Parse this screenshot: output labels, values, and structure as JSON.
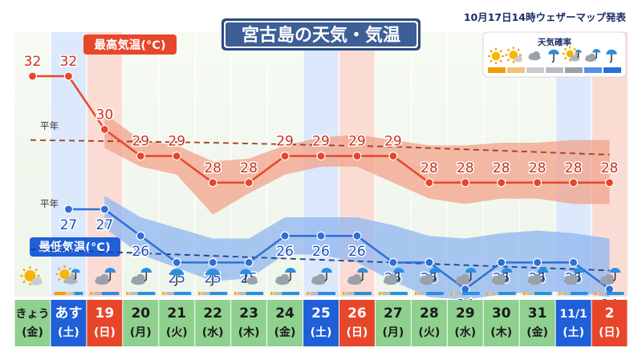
{
  "header": {
    "title": "宮古島の天気・気温",
    "issued": "10月17日14時ウェザーマップ発表"
  },
  "labels": {
    "max_temp": "最高気温(°C)",
    "min_temp": "最低気温(°C)",
    "normal_max": "平年",
    "normal_min": "平年",
    "legend_title": "天気確率"
  },
  "colors": {
    "max_line": "#e8462a",
    "max_band": "#f2a38b",
    "min_line": "#2f6fd6",
    "min_band": "#8fb6f0",
    "saturday_col": "#dce8fb",
    "sunday_col": "#fbdcd4",
    "weekday_label_bg": "#8fd08f",
    "saturday_label_bg": "#1f5fd8",
    "sunday_label_bg": "#e8462a"
  },
  "legend_icons": [
    "sun-icon",
    "sun-cloud-icon",
    "cloud-icon",
    "rain-icon",
    "sun-cloud-rain-icon",
    "cloud-rain-icon",
    "umbrella-icon"
  ],
  "days": [
    {
      "date": "きょう",
      "weekday": "(金)",
      "type": "weekday",
      "icon": "sun-cloud-icon"
    },
    {
      "date": "あす",
      "weekday": "(土)",
      "type": "saturday",
      "icon": "sun-cloud-rain-icon"
    },
    {
      "date": "19",
      "weekday": "(日)",
      "type": "sunday",
      "icon": "cloud-rain-icon"
    },
    {
      "date": "20",
      "weekday": "(月)",
      "type": "weekday",
      "icon": "cloud-rain-icon"
    },
    {
      "date": "21",
      "weekday": "(火)",
      "type": "weekday",
      "icon": "umbrella-icon"
    },
    {
      "date": "22",
      "weekday": "(水)",
      "type": "weekday",
      "icon": "umbrella-icon"
    },
    {
      "date": "23",
      "weekday": "(木)",
      "type": "weekday",
      "icon": "umbrella-cloud-icon"
    },
    {
      "date": "24",
      "weekday": "(金)",
      "type": "weekday",
      "icon": "cloud-rain-icon"
    },
    {
      "date": "25",
      "weekday": "(土)",
      "type": "saturday",
      "icon": "cloud-rain-icon"
    },
    {
      "date": "26",
      "weekday": "(日)",
      "type": "sunday",
      "icon": "cloud-rain-icon"
    },
    {
      "date": "27",
      "weekday": "(月)",
      "type": "weekday",
      "icon": "cloud-rain-icon"
    },
    {
      "date": "28",
      "weekday": "(火)",
      "type": "weekday",
      "icon": "cloud-rain-icon"
    },
    {
      "date": "29",
      "weekday": "(水)",
      "type": "weekday",
      "icon": "cloud-rain-icon"
    },
    {
      "date": "30",
      "weekday": "(木)",
      "type": "weekday",
      "icon": "cloud-rain-icon"
    },
    {
      "date": "31",
      "weekday": "(金)",
      "type": "weekday",
      "icon": "cloud-rain-icon"
    },
    {
      "date": "11/1",
      "weekday": "(土)",
      "type": "saturday",
      "icon": "cloud-rain-icon"
    },
    {
      "date": "2",
      "weekday": "(日)",
      "type": "sunday",
      "icon": "cloud-rain-icon"
    }
  ],
  "chart_data": {
    "type": "line",
    "categories": [
      "きょう",
      "あす",
      "19",
      "20",
      "21",
      "22",
      "23",
      "24",
      "25",
      "26",
      "27",
      "28",
      "29",
      "30",
      "31",
      "11/1",
      "2"
    ],
    "ylim": [
      21,
      34
    ],
    "series": [
      {
        "name": "最高気温(°C)",
        "values": [
          32,
          32,
          30,
          29,
          29,
          28,
          28,
          29,
          29,
          29,
          29,
          28,
          28,
          28,
          28,
          28,
          28
        ],
        "band_low": [
          null,
          null,
          29.3,
          28.6,
          28.3,
          26.8,
          27.6,
          28.3,
          28.6,
          28.6,
          28.0,
          27.4,
          27.2,
          27.4,
          27.4,
          27.2,
          27.2
        ],
        "band_high": [
          null,
          null,
          30.6,
          29.6,
          29.4,
          28.8,
          28.9,
          29.4,
          29.7,
          29.8,
          29.6,
          29.4,
          29.4,
          29.5,
          29.5,
          29.6,
          29.6
        ]
      },
      {
        "name": "最低気温(°C)",
        "values": [
          null,
          27,
          27,
          26,
          25,
          25,
          25,
          26,
          26,
          26,
          25,
          25,
          24,
          25,
          25,
          25,
          24
        ],
        "band_low": [
          null,
          null,
          26.3,
          25.3,
          24.8,
          24.3,
          24.4,
          25.3,
          25.3,
          25.0,
          24.3,
          23.7,
          23.6,
          23.8,
          23.9,
          23.9,
          23.7
        ],
        "band_high": [
          null,
          null,
          27.5,
          26.7,
          26.3,
          25.9,
          25.9,
          26.7,
          26.7,
          26.7,
          26.4,
          26.0,
          25.9,
          26.1,
          26.2,
          26.1,
          25.9
        ]
      }
    ],
    "normals": {
      "max": [
        29.6,
        29.58,
        29.56,
        29.54,
        29.52,
        29.5,
        29.47,
        29.44,
        29.41,
        29.38,
        29.35,
        29.3,
        29.25,
        29.2,
        29.15,
        29.1,
        29.05
      ],
      "min": [
        25.5,
        25.45,
        25.4,
        25.35,
        25.3,
        25.25,
        25.2,
        25.15,
        25.1,
        25.05,
        25.0,
        24.95,
        24.9,
        24.85,
        24.8,
        24.75,
        24.7
      ]
    }
  }
}
